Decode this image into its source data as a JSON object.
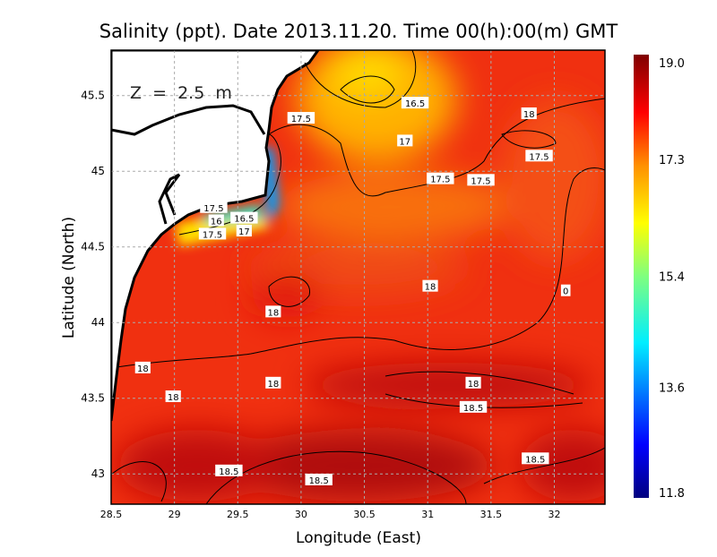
{
  "chart_data": {
    "type": "heatmap",
    "title": "Salinity (ppt). Date 2013.11.20. Time 00(h):00(m) GMT",
    "annotation": "Z  =  2.5  m",
    "xlabel": "Longitude (East)",
    "ylabel": "Latitude (North)",
    "xlim": [
      28.5,
      32.4
    ],
    "ylim": [
      42.8,
      45.8
    ],
    "xticks": [
      "28.5",
      "29",
      "29.5",
      "30",
      "30.5",
      "31",
      "31.5",
      "32"
    ],
    "yticks": [
      "43",
      "43.5",
      "44",
      "44.5",
      "45",
      "45.5"
    ],
    "grid": true,
    "colorbar": {
      "min": 11.8,
      "max": 19.0,
      "ticks": [
        "19.0",
        "17.3",
        "15.4",
        "13.6",
        "11.8"
      ],
      "colors": [
        "#00007f",
        "#0000ff",
        "#00c8ff",
        "#7fff7f",
        "#ffff00",
        "#ffa000",
        "#ff2000",
        "#a00000",
        "#7f0000"
      ]
    },
    "contour_labels": [
      {
        "text": "16.5",
        "lon": 30.9,
        "lat": 45.45
      },
      {
        "text": "17.5",
        "lon": 30.0,
        "lat": 45.35
      },
      {
        "text": "17",
        "lon": 30.82,
        "lat": 45.2
      },
      {
        "text": "18",
        "lon": 31.8,
        "lat": 45.38
      },
      {
        "text": "17.5",
        "lon": 31.88,
        "lat": 45.1
      },
      {
        "text": "17.5",
        "lon": 31.1,
        "lat": 44.95
      },
      {
        "text": "17.5",
        "lon": 31.42,
        "lat": 44.94
      },
      {
        "text": "17.5",
        "lon": 29.31,
        "lat": 44.76
      },
      {
        "text": "16",
        "lon": 29.33,
        "lat": 44.72
      },
      {
        "text": "16.5",
        "lon": 29.55,
        "lat": 44.69
      },
      {
        "text": "17.5",
        "lon": 29.3,
        "lat": 44.62
      },
      {
        "text": "17",
        "lon": 29.55,
        "lat": 44.64
      },
      {
        "text": "18",
        "lon": 31.02,
        "lat": 44.24
      },
      {
        "text": "18",
        "lon": 29.78,
        "lat": 44.07
      },
      {
        "text": "18",
        "lon": 28.75,
        "lat": 43.7
      },
      {
        "text": "18",
        "lon": 31.36,
        "lat": 43.6
      },
      {
        "text": "18",
        "lon": 29.78,
        "lat": 43.6
      },
      {
        "text": "18",
        "lon": 28.99,
        "lat": 43.51
      },
      {
        "text": "18.5",
        "lon": 31.36,
        "lat": 43.44
      },
      {
        "text": "18.5",
        "lon": 31.85,
        "lat": 43.1
      },
      {
        "text": "18.5",
        "lon": 29.43,
        "lat": 43.02
      },
      {
        "text": "18.5",
        "lon": 30.14,
        "lat": 42.96
      },
      {
        "text": "0",
        "lon": 32.09,
        "lat": 44.21
      }
    ]
  }
}
